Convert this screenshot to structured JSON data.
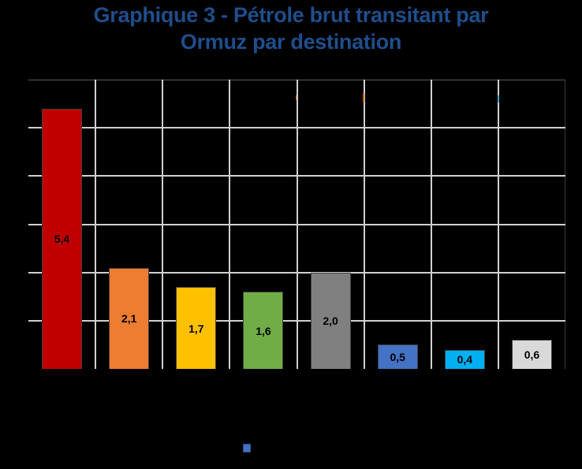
{
  "chart_data": {
    "type": "bar",
    "title": "Graphique 3 - Pétrole brut transitant par Ormuz par destination",
    "title_lines": [
      "Graphique 3 - Pétrole brut transitant par",
      "Ormuz par destination"
    ],
    "categories": [
      "",
      "",
      "",
      "",
      "",
      "",
      "",
      ""
    ],
    "values": [
      5.4,
      2.1,
      1.7,
      1.6,
      2.0,
      0.5,
      0.4,
      0.6
    ],
    "value_labels": [
      "5,4",
      "2,1",
      "1,7",
      "1,6",
      "2,0",
      "0,5",
      "0,4",
      "0,6"
    ],
    "colors": [
      "#c00000",
      "#ed7d31",
      "#ffc000",
      "#70ad47",
      "#808080",
      "#4472c4",
      "#00b0f0",
      "#d9d9d9"
    ],
    "xlabel": "",
    "ylabel": "",
    "ylim": [
      0,
      6
    ],
    "yticks": [
      0,
      1,
      2,
      3,
      4,
      5,
      6
    ],
    "grid": true,
    "legend": {
      "position": "bottom",
      "entries": [
        {
          "name": "",
          "color": "#4472c4"
        }
      ]
    }
  },
  "colors": {
    "background": "#000000",
    "title": "#1f4e8c",
    "gridline": "#d0d0d0"
  }
}
